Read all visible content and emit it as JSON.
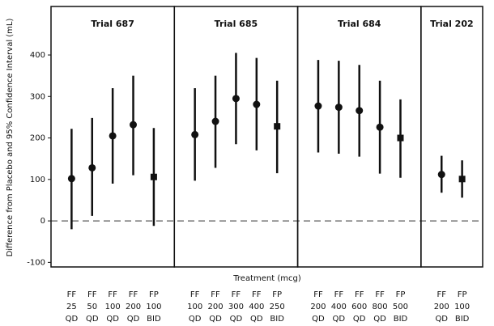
{
  "chart_data": {
    "type": "errorbar",
    "y_label": "Difference from Placebo and 95% Confidence Interval (mL)",
    "x_label": "Treatment (mcg)",
    "ylim": [
      -111,
      517
    ],
    "yticks": [
      -100,
      0,
      100,
      200,
      300,
      400
    ],
    "reference_line": 0,
    "color": "#111111",
    "panels": [
      {
        "title": "Trial 687",
        "categories": [
          [
            "FF",
            "25",
            "QD"
          ],
          [
            "FF",
            "50",
            "QD"
          ],
          [
            "FF",
            "100",
            "QD"
          ],
          [
            "FF",
            "200",
            "QD"
          ],
          [
            "FP",
            "100",
            "BID"
          ]
        ],
        "values": [
          102,
          128,
          205,
          232,
          106
        ],
        "lower": [
          -20,
          12,
          90,
          110,
          -12
        ],
        "upper": [
          222,
          248,
          320,
          350,
          224
        ],
        "markers": [
          "circle",
          "circle",
          "circle",
          "circle",
          "square"
        ]
      },
      {
        "title": "Trial 685",
        "categories": [
          [
            "FF",
            "100",
            "QD"
          ],
          [
            "FF",
            "200",
            "QD"
          ],
          [
            "FF",
            "300",
            "QD"
          ],
          [
            "FF",
            "400",
            "QD"
          ],
          [
            "FP",
            "250",
            "BID"
          ]
        ],
        "values": [
          208,
          240,
          295,
          281,
          228
        ],
        "lower": [
          97,
          128,
          185,
          170,
          115
        ],
        "upper": [
          320,
          350,
          405,
          393,
          338
        ],
        "markers": [
          "circle",
          "circle",
          "circle",
          "circle",
          "square"
        ]
      },
      {
        "title": "Trial 684",
        "categories": [
          [
            "FF",
            "200",
            "QD"
          ],
          [
            "FF",
            "400",
            "QD"
          ],
          [
            "FF",
            "600",
            "QD"
          ],
          [
            "FF",
            "800",
            "QD"
          ],
          [
            "FP",
            "500",
            "BID"
          ]
        ],
        "values": [
          277,
          274,
          266,
          226,
          200
        ],
        "lower": [
          165,
          162,
          155,
          114,
          104
        ],
        "upper": [
          388,
          386,
          376,
          338,
          293
        ],
        "markers": [
          "circle",
          "circle",
          "circle",
          "circle",
          "square"
        ]
      },
      {
        "title": "Trial 202",
        "categories": [
          [
            "FF",
            "200",
            "QD"
          ],
          [
            "FP",
            "100",
            "BID"
          ]
        ],
        "values": [
          112,
          101
        ],
        "lower": [
          68,
          56
        ],
        "upper": [
          157,
          146
        ],
        "markers": [
          "circle",
          "square"
        ]
      }
    ]
  }
}
